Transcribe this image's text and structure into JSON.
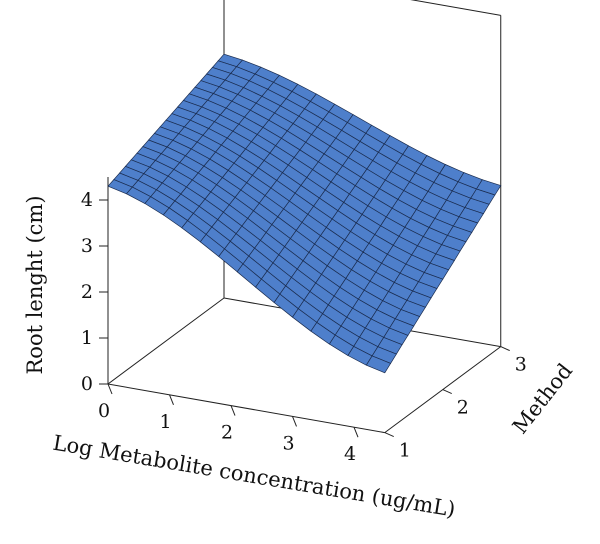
{
  "chart_data": {
    "type": "surface",
    "xlabel": "Log Metabolite concentration (ug/mL)",
    "ylabel": "Method",
    "zlabel": "Root lenght (cm)",
    "x_ticks": [
      "0",
      "1",
      "2",
      "3",
      "4"
    ],
    "y_ticks": [
      "1",
      "2",
      "3"
    ],
    "z_ticks": [
      "0",
      "1",
      "2",
      "3",
      "4"
    ],
    "xlim": [
      0,
      4.5
    ],
    "ylim": [
      1,
      3
    ],
    "zlim": [
      0,
      4.5
    ],
    "grid_x": [
      0,
      0.3,
      0.6,
      0.9,
      1.2,
      1.5,
      1.8,
      2.1,
      2.4,
      2.7,
      3.0,
      3.3,
      3.6,
      3.9,
      4.2,
      4.5
    ],
    "grid_y": [
      1.0,
      1.1,
      1.2,
      1.3,
      1.4,
      1.5,
      1.6,
      1.7,
      1.8,
      1.9,
      2.0,
      2.1,
      2.2,
      2.3,
      2.4,
      2.5,
      2.6,
      2.7,
      2.8,
      2.9,
      3.0
    ],
    "surface_corners": {
      "x0_method1": 4.3,
      "x0_method3": 5.3,
      "x4.5_method1": 1.3,
      "x4.5_method3": 3.5
    },
    "surface_color": "#4E7FCB",
    "mesh_color": "#1A2C4F"
  }
}
